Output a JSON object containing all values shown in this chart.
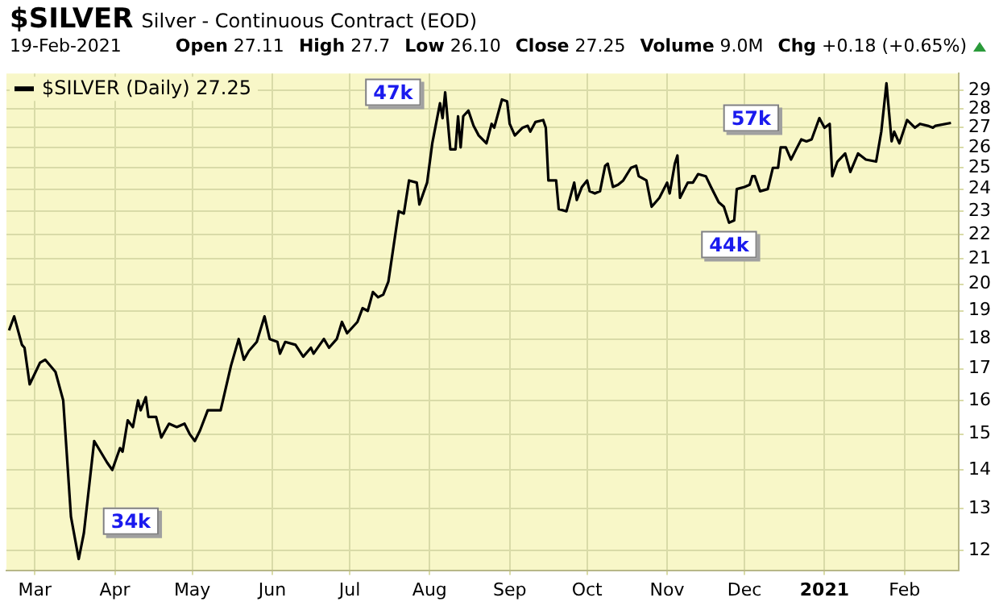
{
  "chart_data": {
    "type": "line",
    "title": "$SILVER",
    "subtitle": "Silver - Continuous Contract (EOD)",
    "annotations": [
      "19-Feb-2021",
      "Open 27.11",
      "High 27.7",
      "Low 26.10",
      "Close 27.25",
      "Volume 9.0M",
      "Chg +0.18 (+0.65%)",
      {
        "text": "34k",
        "x": "2020-03-18",
        "y": 11.8
      },
      {
        "text": "47k",
        "x": "2020-08-07",
        "y": 28.9
      },
      {
        "text": "44k",
        "x": "2020-11-25",
        "y": 22.5
      },
      {
        "text": "57k",
        "x": "2020-12-30",
        "y": 27.5
      }
    ],
    "x": [
      "2020-02-20",
      "2020-02-22",
      "2020-02-25",
      "2020-02-26",
      "2020-02-28",
      "2020-03-03",
      "2020-03-05",
      "2020-03-09",
      "2020-03-12",
      "2020-03-15",
      "2020-03-18",
      "2020-03-20",
      "2020-03-24",
      "2020-03-29",
      "2020-03-31",
      "2020-04-03",
      "2020-04-04",
      "2020-04-06",
      "2020-04-08",
      "2020-04-10",
      "2020-04-11",
      "2020-04-13",
      "2020-04-14",
      "2020-04-17",
      "2020-04-19",
      "2020-04-22",
      "2020-04-25",
      "2020-04-28",
      "2020-04-30",
      "2020-05-02",
      "2020-05-04",
      "2020-05-07",
      "2020-05-12",
      "2020-05-16",
      "2020-05-19",
      "2020-05-21",
      "2020-05-23",
      "2020-05-26",
      "2020-05-29",
      "2020-05-31",
      "2020-06-03",
      "2020-06-04",
      "2020-06-06",
      "2020-06-10",
      "2020-06-13",
      "2020-06-16",
      "2020-06-17",
      "2020-06-21",
      "2020-06-23",
      "2020-06-26",
      "2020-06-28",
      "2020-06-30",
      "2020-07-04",
      "2020-07-06",
      "2020-07-08",
      "2020-07-10",
      "2020-07-12",
      "2020-07-14",
      "2020-07-16",
      "2020-07-20",
      "2020-07-22",
      "2020-07-24",
      "2020-07-27",
      "2020-07-28",
      "2020-07-31",
      "2020-08-02",
      "2020-08-05",
      "2020-08-06",
      "2020-08-07",
      "2020-08-09",
      "2020-08-11",
      "2020-08-12",
      "2020-08-13",
      "2020-08-14",
      "2020-08-16",
      "2020-08-18",
      "2020-08-20",
      "2020-08-23",
      "2020-08-25",
      "2020-08-26",
      "2020-08-29",
      "2020-08-31",
      "2020-09-01",
      "2020-09-03",
      "2020-09-06",
      "2020-09-08",
      "2020-09-09",
      "2020-09-11",
      "2020-09-14",
      "2020-09-15",
      "2020-09-16",
      "2020-09-19",
      "2020-09-20",
      "2020-09-23",
      "2020-09-26",
      "2020-09-27",
      "2020-09-29",
      "2020-10-01",
      "2020-10-02",
      "2020-10-04",
      "2020-10-06",
      "2020-10-08",
      "2020-10-09",
      "2020-10-11",
      "2020-10-13",
      "2020-10-15",
      "2020-10-18",
      "2020-10-20",
      "2020-10-21",
      "2020-10-24",
      "2020-10-26",
      "2020-10-29",
      "2020-11-01",
      "2020-11-02",
      "2020-11-04",
      "2020-11-05",
      "2020-11-06",
      "2020-11-09",
      "2020-11-11",
      "2020-11-13",
      "2020-11-16",
      "2020-11-18",
      "2020-11-21",
      "2020-11-23",
      "2020-11-25",
      "2020-11-27",
      "2020-11-28",
      "2020-12-01",
      "2020-12-03",
      "2020-12-04",
      "2020-12-05",
      "2020-12-07",
      "2020-12-10",
      "2020-12-12",
      "2020-12-14",
      "2020-12-15",
      "2020-12-17",
      "2020-12-19",
      "2020-12-21",
      "2020-12-23",
      "2020-12-25",
      "2020-12-27",
      "2020-12-30",
      "2021-01-01",
      "2021-01-03",
      "2021-01-04",
      "2021-01-06",
      "2021-01-09",
      "2021-01-11",
      "2021-01-14",
      "2021-01-17",
      "2021-01-21",
      "2021-01-23",
      "2021-01-25",
      "2021-01-27",
      "2021-01-28",
      "2021-01-30",
      "2021-02-02",
      "2021-02-05",
      "2021-02-07",
      "2021-02-10",
      "2021-02-12",
      "2021-02-13",
      "2021-02-19"
    ],
    "series": [
      {
        "name": "$SILVER (Daily) 27.25",
        "color": "#000000",
        "values": [
          18.3,
          18.8,
          17.8,
          17.7,
          16.5,
          17.2,
          17.3,
          16.9,
          16.0,
          12.8,
          11.8,
          12.4,
          14.8,
          14.2,
          14.0,
          14.6,
          14.5,
          15.4,
          15.2,
          16.0,
          15.7,
          16.1,
          15.5,
          15.5,
          14.9,
          15.3,
          15.2,
          15.3,
          15.0,
          14.8,
          15.1,
          15.7,
          15.7,
          17.1,
          18.0,
          17.3,
          17.6,
          17.9,
          18.8,
          18.0,
          17.9,
          17.5,
          17.9,
          17.8,
          17.4,
          17.7,
          17.5,
          18.0,
          17.7,
          18.0,
          18.6,
          18.2,
          18.6,
          19.1,
          19.0,
          19.7,
          19.5,
          19.6,
          20.1,
          23.0,
          22.9,
          24.4,
          24.3,
          23.3,
          24.3,
          26.2,
          28.3,
          27.5,
          28.9,
          25.9,
          25.9,
          27.6,
          26.0,
          27.6,
          27.9,
          27.1,
          26.6,
          26.2,
          27.2,
          27.0,
          28.5,
          28.4,
          27.2,
          26.6,
          27.0,
          27.1,
          26.8,
          27.3,
          27.4,
          27.0,
          24.4,
          24.4,
          23.1,
          23.0,
          24.3,
          23.5,
          24.1,
          24.4,
          23.9,
          23.8,
          23.9,
          25.1,
          25.2,
          24.1,
          24.2,
          24.4,
          25.0,
          25.1,
          24.6,
          24.4,
          23.2,
          23.6,
          24.3,
          23.8,
          25.2,
          25.6,
          23.6,
          24.3,
          24.3,
          24.7,
          24.6,
          24.1,
          23.4,
          23.2,
          22.5,
          22.6,
          24.0,
          24.1,
          24.2,
          24.6,
          24.6,
          23.9,
          24.0,
          25.0,
          25.0,
          26.0,
          26.0,
          25.4,
          25.9,
          26.4,
          26.3,
          26.4,
          27.5,
          27.0,
          27.2,
          24.6,
          25.3,
          25.7,
          24.8,
          25.7,
          25.4,
          25.3,
          26.8,
          29.4,
          26.3,
          26.8,
          26.2,
          27.4,
          27.0,
          27.2,
          27.1,
          27.0,
          27.1,
          27.25
        ]
      }
    ],
    "xlim": [
      "2020-02-19",
      "2021-02-22"
    ],
    "xticks": [
      {
        "value": "2020-03-01",
        "label": "Mar"
      },
      {
        "value": "2020-04-01",
        "label": "Apr"
      },
      {
        "value": "2020-05-01",
        "label": "May"
      },
      {
        "value": "2020-06-01",
        "label": "Jun"
      },
      {
        "value": "2020-07-01",
        "label": "Jul"
      },
      {
        "value": "2020-08-01",
        "label": "Aug"
      },
      {
        "value": "2020-09-01",
        "label": "Sep"
      },
      {
        "value": "2020-10-01",
        "label": "Oct"
      },
      {
        "value": "2020-11-01",
        "label": "Nov"
      },
      {
        "value": "2020-12-01",
        "label": "Dec"
      },
      {
        "value": "2021-01-01",
        "label": "2021"
      },
      {
        "value": "2021-02-01",
        "label": "Feb"
      }
    ],
    "ylim": [
      11.55,
      29.96
    ],
    "yticks": [
      12,
      13,
      14,
      15,
      16,
      17,
      18,
      19,
      20,
      21,
      22,
      23,
      24,
      25,
      26,
      27,
      28,
      29
    ],
    "log": "y",
    "grid": true,
    "legend": "top left"
  }
}
